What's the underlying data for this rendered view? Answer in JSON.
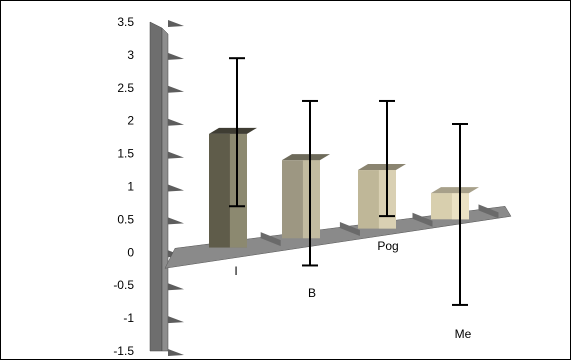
{
  "chart_data": {
    "type": "bar",
    "title": "",
    "xlabel": "",
    "ylabel": "",
    "categories": [
      "I",
      "B",
      "Pog",
      "Me"
    ],
    "values": [
      1.8,
      1.4,
      1.25,
      0.9
    ],
    "error_low": [
      0.7,
      -0.2,
      0.55,
      -0.8
    ],
    "error_high": [
      2.95,
      2.3,
      2.3,
      1.95
    ],
    "y_ticks": [
      "3.5",
      "3",
      "2.5",
      "2",
      "1.5",
      "1",
      "0.5",
      "0",
      "-0.5",
      "-1",
      "-1.5"
    ],
    "ylim": [
      -1.5,
      3.5
    ],
    "grid": false,
    "colors": {
      "bar_front": [
        "#5f5c4a",
        "#9d9782",
        "#bfb798",
        "#d8cfae"
      ],
      "bar_side": [
        "#8c8970",
        "#c2bba0",
        "#d9d0b3",
        "#ebe2c4"
      ],
      "bar_top": [
        "#3f3d33",
        "#6d6a5a",
        "#8a8470",
        "#a7a08a"
      ],
      "axis_wall": "#6e6e6e",
      "floor": "#8a8a8a"
    }
  }
}
